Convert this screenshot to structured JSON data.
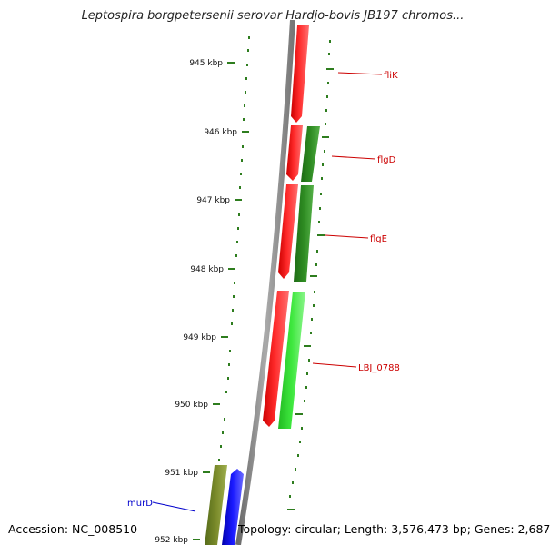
{
  "title": "Leptospira borgpetersenii serovar Hardjo-bovis JB197 chromos...",
  "accession": "Accession: NC_008510",
  "stats": "Topology: circular; Length: 3,576,473 bp; Genes: 2,687",
  "colors": {
    "backbone": "#8a8a8a",
    "tick": "#2e7d1e",
    "red_gene": "#ff1a1a",
    "dark_green_gene": "#2e8b22",
    "light_green_gene": "#33dd33",
    "olive_gene": "#7a8a2a",
    "blue_gene": "#1a1aff",
    "red_label": "#cc0000",
    "blue_label": "#0000cc"
  },
  "ticks": [
    {
      "kbp": 945,
      "label": "945 kbp"
    },
    {
      "kbp": 946,
      "label": "946 kbp"
    },
    {
      "kbp": 947,
      "label": "947 kbp"
    },
    {
      "kbp": 948,
      "label": "948 kbp"
    },
    {
      "kbp": 949,
      "label": "949 kbp"
    },
    {
      "kbp": 950,
      "label": "950 kbp"
    },
    {
      "kbp": 951,
      "label": "951 kbp"
    },
    {
      "kbp": 952,
      "label": "952 kbp"
    }
  ],
  "labels": [
    {
      "text": "fliK",
      "color": "red"
    },
    {
      "text": "flgD",
      "color": "red"
    },
    {
      "text": "flgE",
      "color": "red"
    },
    {
      "text": "LBJ_0788",
      "color": "red"
    },
    {
      "text": "murD",
      "color": "blue"
    }
  ]
}
